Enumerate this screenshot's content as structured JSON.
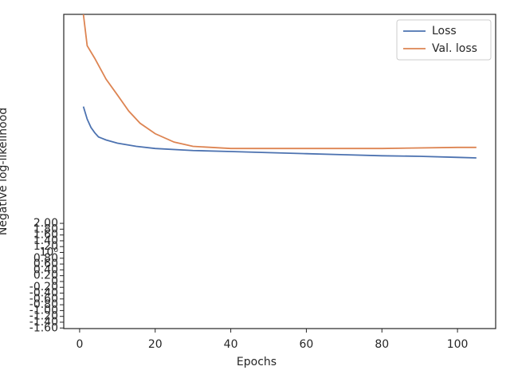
{
  "chart_data": {
    "type": "line",
    "xlabel": "Epochs",
    "ylabel": "Negative log-likelihood",
    "xlim": [
      -4.2,
      110.1
    ],
    "xticks": [
      0,
      20,
      40,
      60,
      80,
      100
    ],
    "ylim": [
      -1.62,
      40
    ],
    "yscale": "symlog",
    "linthresh": 2,
    "yticks": [
      {
        "value": -1.6,
        "label": "-1.60"
      },
      {
        "value": -1.4,
        "label": "-1.40"
      },
      {
        "value": -1.2,
        "label": "-1.20"
      },
      {
        "value": -1.0,
        "label": "-1.00"
      },
      {
        "value": -0.8,
        "label": "-0.80"
      },
      {
        "value": -0.6,
        "label": "-0.60"
      },
      {
        "value": -0.4,
        "label": "-0.40"
      },
      {
        "value": -0.2,
        "label": "-0.20"
      },
      0,
      {
        "value": 0.2,
        "label": "0.20"
      },
      {
        "value": 0.4,
        "label": "0.40"
      },
      {
        "value": 0.6,
        "label": "0.60"
      },
      {
        "value": 0.8,
        "label": "0.80"
      },
      {
        "value": 1,
        "label": "10⁰"
      },
      {
        "value": 1.2,
        "label": "1.20"
      },
      {
        "value": 1.4,
        "label": "1.40"
      },
      {
        "value": 1.6,
        "label": "1.60"
      },
      {
        "value": 1.8,
        "label": "1.80"
      },
      {
        "value": 2.0,
        "label": "2.00"
      }
    ],
    "legend": "upper right",
    "series": [
      {
        "name": "Loss",
        "color": "#4c72b0",
        "x": [
          1,
          2,
          3,
          4,
          5,
          7,
          10,
          15,
          20,
          30,
          40,
          50,
          60,
          70,
          80,
          90,
          100,
          105
        ],
        "values": [
          10.67,
          8.91,
          7.91,
          7.33,
          6.9,
          6.61,
          6.31,
          6.03,
          5.85,
          5.68,
          5.6,
          5.51,
          5.43,
          5.35,
          5.27,
          5.23,
          5.15,
          5.11
        ]
      },
      {
        "name": "Val. loss",
        "color": "#dd8452",
        "x": [
          1,
          2,
          4,
          7,
          10,
          13,
          16,
          20,
          25,
          30,
          40,
          60,
          80,
          100,
          105
        ],
        "values": [
          40,
          25.5,
          21.3,
          15.8,
          12.6,
          10.0,
          8.4,
          7.23,
          6.41,
          6.03,
          5.85,
          5.85,
          5.85,
          5.94,
          5.94
        ]
      }
    ]
  }
}
